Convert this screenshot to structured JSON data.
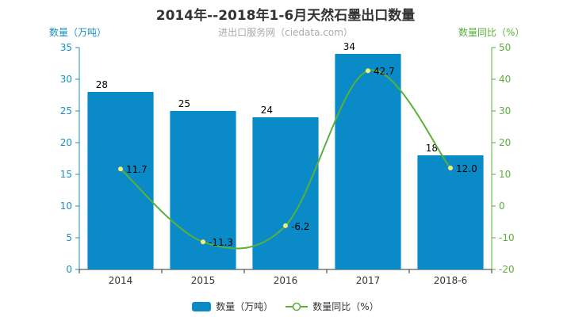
{
  "chart_data": {
    "type": "bar",
    "title": "2014年--2018年1-6月天然石墨出口数量",
    "subtitle": "进出口服务网（ciedata.com）",
    "categories": [
      "2014",
      "2015",
      "2016",
      "2017",
      "2018-6"
    ],
    "series": [
      {
        "name": "数量（万吨）",
        "type": "bar",
        "axis": "left",
        "values": [
          28,
          25,
          24,
          34,
          18
        ]
      },
      {
        "name": "数量同比（%）",
        "type": "line",
        "axis": "right",
        "values": [
          11.7,
          -11.3,
          -6.2,
          42.7,
          12.0
        ]
      }
    ],
    "value_labels": {
      "bar": [
        "28",
        "25",
        "24",
        "34",
        "18"
      ],
      "line": [
        "11.7",
        "-11.3",
        "-6.2",
        "42.7",
        "12.0"
      ]
    },
    "y_left": {
      "label": "数量（万吨）",
      "min": 0,
      "max": 35,
      "ticks": [
        "0",
        "5",
        "10",
        "15",
        "20",
        "25",
        "30",
        "35"
      ]
    },
    "y_right": {
      "label": "数量同比（%）",
      "min": -20,
      "max": 50,
      "ticks": [
        "-20",
        "-10",
        "0",
        "10",
        "20",
        "30",
        "40",
        "50"
      ]
    },
    "colors": {
      "bar": "#0a8bc8",
      "line": "#5ab03a",
      "left_axis": "#1a8fc5",
      "right_axis": "#5ab03a",
      "point": "#f7f37a"
    },
    "legend_position": "bottom-center",
    "grid": false
  }
}
